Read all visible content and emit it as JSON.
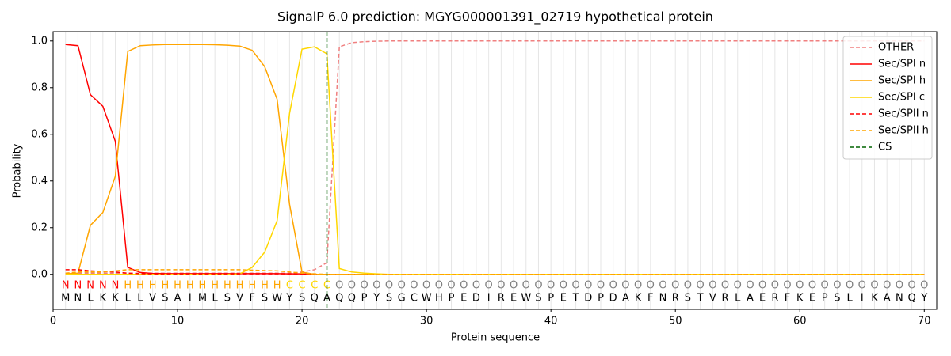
{
  "chart_data": {
    "type": "line",
    "title": "SignalP 6.0 prediction: MGYG000001391_02719 hypothetical protein",
    "x_label": "Protein sequence",
    "y_label": "Probability",
    "x": [
      1,
      2,
      3,
      4,
      5,
      6,
      7,
      8,
      9,
      10,
      11,
      12,
      13,
      14,
      15,
      16,
      17,
      18,
      19,
      20,
      21,
      22,
      23,
      24,
      25,
      26,
      27,
      28,
      29,
      30,
      31,
      32,
      33,
      34,
      35,
      36,
      37,
      38,
      39,
      40,
      41,
      42,
      43,
      44,
      45,
      46,
      47,
      48,
      49,
      50,
      51,
      52,
      53,
      54,
      55,
      56,
      57,
      58,
      59,
      60,
      61,
      62,
      63,
      64,
      65,
      66,
      67,
      68,
      69,
      70
    ],
    "sequence": [
      "M",
      "N",
      "L",
      "K",
      "K",
      "L",
      "L",
      "V",
      "S",
      "A",
      "I",
      "M",
      "L",
      "S",
      "V",
      "F",
      "S",
      "W",
      "Y",
      "S",
      "Q",
      "A",
      "Q",
      "Q",
      "P",
      "Y",
      "S",
      "G",
      "C",
      "W",
      "H",
      "P",
      "E",
      "D",
      "I",
      "R",
      "E",
      "W",
      "S",
      "P",
      "E",
      "T",
      "D",
      "P",
      "D",
      "A",
      "K",
      "F",
      "N",
      "R",
      "S",
      "T",
      "V",
      "R",
      "L",
      "A",
      "E",
      "R",
      "F",
      "K",
      "E",
      "P",
      "S",
      "L",
      "I",
      "K",
      "A",
      "N",
      "Q",
      "Y"
    ],
    "annotation": [
      "N",
      "N",
      "N",
      "N",
      "N",
      "H",
      "H",
      "H",
      "H",
      "H",
      "H",
      "H",
      "H",
      "H",
      "H",
      "H",
      "H",
      "H",
      "C",
      "C",
      "C",
      "C",
      "O",
      "O",
      "O",
      "O",
      "O",
      "O",
      "O",
      "O",
      "O",
      "O",
      "O",
      "O",
      "O",
      "O",
      "O",
      "O",
      "O",
      "O",
      "O",
      "O",
      "O",
      "O",
      "O",
      "O",
      "O",
      "O",
      "O",
      "O",
      "O",
      "O",
      "O",
      "O",
      "O",
      "O",
      "O",
      "O",
      "O",
      "O",
      "O",
      "O",
      "O",
      "O",
      "O",
      "O",
      "O",
      "O",
      "O",
      "O"
    ],
    "annotation_colors": {
      "N": "#ff0000",
      "H": "#ffa500",
      "C": "#ffd700",
      "O": "#808080"
    },
    "series": [
      {
        "name": "OTHER",
        "color": "#f08080",
        "dashed": true,
        "values": [
          0.005,
          0.005,
          0.005,
          0.005,
          0.005,
          0.005,
          0.005,
          0.005,
          0.005,
          0.005,
          0.005,
          0.005,
          0.005,
          0.005,
          0.005,
          0.005,
          0.005,
          0.005,
          0.005,
          0.01,
          0.02,
          0.05,
          0.975,
          0.993,
          0.997,
          0.999,
          1,
          1,
          1,
          1,
          1,
          1,
          1,
          1,
          1,
          1,
          1,
          1,
          1,
          1,
          1,
          1,
          1,
          1,
          1,
          1,
          1,
          1,
          1,
          1,
          1,
          1,
          1,
          1,
          1,
          1,
          1,
          1,
          1,
          1,
          1,
          1,
          1,
          1,
          1,
          1,
          1,
          1,
          1,
          1
        ]
      },
      {
        "name": "Sec/SPI n",
        "color": "#ff0000",
        "dashed": false,
        "values": [
          0.985,
          0.98,
          0.77,
          0.72,
          0.57,
          0.03,
          0.008,
          0.004,
          0.003,
          0.003,
          0.003,
          0.003,
          0.003,
          0.003,
          0.003,
          0.003,
          0.003,
          0.003,
          0.002,
          0.002,
          0,
          0,
          0,
          0,
          0,
          0,
          0,
          0,
          0,
          0,
          0,
          0,
          0,
          0,
          0,
          0,
          0,
          0,
          0,
          0,
          0,
          0,
          0,
          0,
          0,
          0,
          0,
          0,
          0,
          0,
          0,
          0,
          0,
          0,
          0,
          0,
          0,
          0,
          0,
          0,
          0,
          0,
          0,
          0,
          0,
          0,
          0,
          0,
          0,
          0
        ]
      },
      {
        "name": "Sec/SPI h",
        "color": "#ffa500",
        "dashed": false,
        "values": [
          0.002,
          0.005,
          0.21,
          0.265,
          0.42,
          0.955,
          0.98,
          0.983,
          0.985,
          0.985,
          0.985,
          0.985,
          0.984,
          0.982,
          0.978,
          0.96,
          0.89,
          0.75,
          0.3,
          0.01,
          0,
          0,
          0,
          0,
          0,
          0,
          0,
          0,
          0,
          0,
          0,
          0,
          0,
          0,
          0,
          0,
          0,
          0,
          0,
          0,
          0,
          0,
          0,
          0,
          0,
          0,
          0,
          0,
          0,
          0,
          0,
          0,
          0,
          0,
          0,
          0,
          0,
          0,
          0,
          0,
          0,
          0,
          0,
          0,
          0,
          0,
          0,
          0,
          0,
          0
        ]
      },
      {
        "name": "Sec/SPI c",
        "color": "#ffd700",
        "dashed": false,
        "values": [
          0,
          0,
          0,
          0,
          0,
          0,
          0,
          0,
          0,
          0,
          0,
          0,
          0,
          0,
          0.002,
          0.03,
          0.095,
          0.23,
          0.69,
          0.965,
          0.975,
          0.945,
          0.025,
          0.01,
          0.005,
          0.002,
          0,
          0,
          0,
          0,
          0,
          0,
          0,
          0,
          0,
          0,
          0,
          0,
          0,
          0,
          0,
          0,
          0,
          0,
          0,
          0,
          0,
          0,
          0,
          0,
          0,
          0,
          0,
          0,
          0,
          0,
          0,
          0,
          0,
          0,
          0,
          0,
          0,
          0,
          0,
          0,
          0,
          0,
          0,
          0
        ]
      },
      {
        "name": "Sec/SPII n",
        "color": "#ff0000",
        "dashed": true,
        "values": [
          0.02,
          0.02,
          0.015,
          0.012,
          0.01,
          0.005,
          0.003,
          0.002,
          0.002,
          0.002,
          0.002,
          0.002,
          0.002,
          0.002,
          0.002,
          0.002,
          0.002,
          0.002,
          0.002,
          0.002,
          0,
          0,
          0,
          0,
          0,
          0,
          0,
          0,
          0,
          0,
          0,
          0,
          0,
          0,
          0,
          0,
          0,
          0,
          0,
          0,
          0,
          0,
          0,
          0,
          0,
          0,
          0,
          0,
          0,
          0,
          0,
          0,
          0,
          0,
          0,
          0,
          0,
          0,
          0,
          0,
          0,
          0,
          0,
          0,
          0,
          0,
          0,
          0,
          0,
          0
        ]
      },
      {
        "name": "Sec/SPII h",
        "color": "#ffa500",
        "dashed": true,
        "values": [
          0.005,
          0.01,
          0.01,
          0.01,
          0.015,
          0.02,
          0.02,
          0.02,
          0.02,
          0.02,
          0.02,
          0.02,
          0.02,
          0.02,
          0.02,
          0.018,
          0.016,
          0.015,
          0.01,
          0.005,
          0.002,
          0,
          0,
          0,
          0,
          0,
          0,
          0,
          0,
          0,
          0,
          0,
          0,
          0,
          0,
          0,
          0,
          0,
          0,
          0,
          0,
          0,
          0,
          0,
          0,
          0,
          0,
          0,
          0,
          0,
          0,
          0,
          0,
          0,
          0,
          0,
          0,
          0,
          0,
          0,
          0,
          0,
          0,
          0,
          0,
          0,
          0,
          0,
          0,
          0
        ]
      }
    ],
    "cs": {
      "name": "CS",
      "color": "#006400",
      "x": 22
    },
    "xlim": [
      0,
      71
    ],
    "ylim": [
      -0.15,
      1.04
    ],
    "xticks": [
      0,
      10,
      20,
      30,
      40,
      50,
      60,
      70
    ],
    "yticks": [
      {
        "value": 0,
        "label": "0.0"
      },
      {
        "value": 0.2,
        "label": "0.2"
      },
      {
        "value": 0.4,
        "label": "0.4"
      },
      {
        "value": 0.6,
        "label": "0.6"
      },
      {
        "value": 0.8,
        "label": "0.8"
      },
      {
        "value": 1,
        "label": "1.0"
      }
    ],
    "legend": "upper right"
  }
}
